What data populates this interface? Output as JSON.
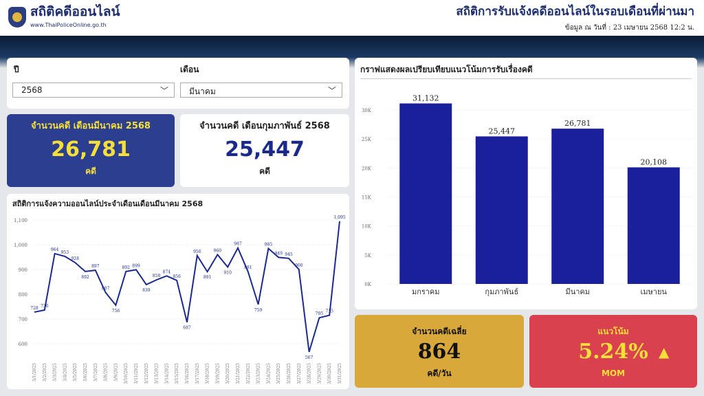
{
  "header": {
    "brand": "สถิติคดีออนไลน์",
    "url": "www.ThaiPoliceOnline.go.th",
    "title": "สถิติการรับแจ้งคดีออนไลน์ในรอบเดือนที่ผ่านมา",
    "date": "ข้อมูล ณ วันที่ : 23 เมษายน 2568 12:2 น."
  },
  "filters": {
    "year_label": "ปี",
    "year_value": "2568",
    "month_label": "เดือน",
    "month_value": "มีนาคม"
  },
  "kpi_current": {
    "title": "จำนวนคดี เดือนมีนาคม 2568",
    "value": "26,781",
    "unit": "คดี"
  },
  "kpi_previous": {
    "title": "จำนวนคดี เดือนกุมภาพันธ์ 2568",
    "value": "25,447",
    "unit": "คดี"
  },
  "kpi_avg": {
    "title": "จำนวนคดีเฉลี่ย",
    "value": "864",
    "unit": "คดี/วัน"
  },
  "kpi_trend": {
    "title": "แนวโน้ม",
    "value": "5.24%",
    "unit": "MOM",
    "arrow": "▲"
  },
  "colors": {
    "navy": "#1a2a8c",
    "gold": "#d8a83a",
    "red": "#d9414f",
    "yellow": "#f5e03a"
  },
  "chart_data": [
    {
      "type": "bar",
      "title": "กราฟแสดงผลเปรียบเทียบแนวโน้มการรับเรื่องคดี",
      "categories": [
        "มกราคม",
        "กุมภาพันธ์",
        "มีนาคม",
        "เมษายน"
      ],
      "values": [
        31132,
        25447,
        26781,
        20108
      ],
      "labels": [
        "31,132",
        "25,447",
        "26,781",
        "20,108"
      ],
      "ylim": [
        0,
        30000
      ],
      "yticks": [
        "0K",
        "5K",
        "10K",
        "15K",
        "20K",
        "25K",
        "30K"
      ]
    },
    {
      "type": "line",
      "title": "สถิติการแจ้งความออนไลน์ประจำเดือนเดือนมีนาคม 2568",
      "x": [
        "3/1/2025",
        "3/2/2025",
        "3/3/2025",
        "3/4/2025",
        "3/5/2025",
        "3/6/2025",
        "3/7/2025",
        "3/8/2025",
        "3/9/2025",
        "3/10/2025",
        "3/11/2025",
        "3/12/2025",
        "3/13/2025",
        "3/14/2025",
        "3/15/2025",
        "3/16/2025",
        "3/17/2025",
        "3/18/2025",
        "3/19/2025",
        "3/20/2025",
        "3/21/2025",
        "3/22/2025",
        "3/23/2025",
        "3/24/2025",
        "3/25/2025",
        "3/26/2025",
        "3/27/2025",
        "3/28/2025",
        "3/29/2025",
        "3/30/2025",
        "3/31/2025"
      ],
      "values": [
        728,
        736,
        964,
        953,
        928,
        892,
        897,
        807,
        756,
        892,
        899,
        839,
        858,
        874,
        856,
        687,
        956,
        891,
        960,
        910,
        987,
        891,
        759,
        985,
        949,
        945,
        900,
        567,
        705,
        715,
        1095
      ],
      "ylim": [
        550,
        1100
      ],
      "yticks": [
        "600",
        "700",
        "800",
        "900",
        "1,000",
        "1,100"
      ]
    }
  ]
}
